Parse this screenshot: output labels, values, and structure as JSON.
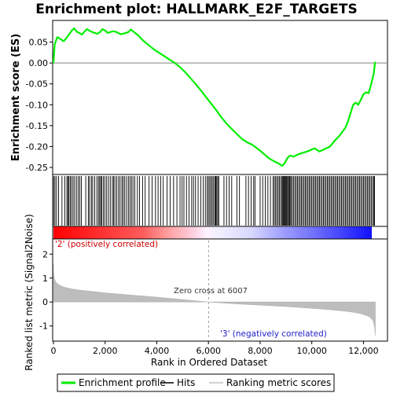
{
  "chart_data": [
    {
      "type": "line",
      "title": "Enrichment plot: HALLMARK_E2F_TARGETS",
      "ylabel": "Enrichment score (ES)",
      "ylim": [
        -0.265,
        0.1
      ],
      "yticks": [
        0.05,
        0.0,
        -0.05,
        -0.1,
        -0.15,
        -0.2,
        -0.25
      ],
      "ytick_labels": [
        "0.05",
        "0.00",
        "-0.05",
        "-0.10",
        "-0.15",
        "-0.20",
        "-0.25"
      ],
      "xlim": [
        0,
        12900
      ],
      "grid": false,
      "color": "#00ee00",
      "series": [
        {
          "name": "Enrichment profile",
          "x": [
            0,
            50,
            150,
            250,
            400,
            500,
            600,
            700,
            800,
            900,
            1000,
            1100,
            1200,
            1300,
            1400,
            1500,
            1600,
            1700,
            1800,
            1900,
            2000,
            2100,
            2200,
            2300,
            2400,
            2500,
            2600,
            2700,
            2800,
            2900,
            3000,
            3100,
            3200,
            3300,
            3400,
            3500,
            3700,
            3900,
            4100,
            4300,
            4500,
            4700,
            4900,
            5100,
            5300,
            5500,
            5700,
            5900,
            6100,
            6300,
            6500,
            6700,
            6900,
            7100,
            7300,
            7500,
            7700,
            7900,
            8100,
            8300,
            8500,
            8700,
            8850,
            8950,
            9050,
            9150,
            9300,
            9500,
            9700,
            9900,
            10100,
            10300,
            10500,
            10700,
            10900,
            11100,
            11300,
            11400,
            11500,
            11600,
            11700,
            11800,
            11900,
            12000,
            12100,
            12200,
            12300,
            12400,
            12450
          ],
          "y": [
            0.0,
            0.045,
            0.062,
            0.058,
            0.052,
            0.06,
            0.068,
            0.077,
            0.083,
            0.075,
            0.072,
            0.068,
            0.075,
            0.081,
            0.077,
            0.074,
            0.072,
            0.07,
            0.074,
            0.081,
            0.078,
            0.072,
            0.074,
            0.076,
            0.075,
            0.072,
            0.069,
            0.07,
            0.072,
            0.074,
            0.08,
            0.075,
            0.07,
            0.065,
            0.058,
            0.052,
            0.042,
            0.032,
            0.024,
            0.016,
            0.008,
            0.0,
            -0.01,
            -0.022,
            -0.036,
            -0.05,
            -0.065,
            -0.081,
            -0.097,
            -0.113,
            -0.13,
            -0.145,
            -0.158,
            -0.17,
            -0.182,
            -0.19,
            -0.196,
            -0.205,
            -0.215,
            -0.226,
            -0.234,
            -0.24,
            -0.246,
            -0.24,
            -0.228,
            -0.222,
            -0.224,
            -0.218,
            -0.214,
            -0.21,
            -0.204,
            -0.212,
            -0.206,
            -0.2,
            -0.185,
            -0.172,
            -0.155,
            -0.14,
            -0.12,
            -0.1,
            -0.095,
            -0.1,
            -0.088,
            -0.075,
            -0.07,
            -0.072,
            -0.05,
            -0.025,
            0.003
          ]
        }
      ]
    },
    {
      "type": "scatter",
      "legend_entry": "Hits",
      "hit_ranks": [
        10,
        60,
        120,
        200,
        330,
        440,
        520,
        560,
        600,
        650,
        700,
        760,
        820,
        890,
        960,
        1020,
        1080,
        1250,
        1350,
        1400,
        1470,
        1520,
        1600,
        1680,
        1740,
        1790,
        1830,
        1870,
        1930,
        1990,
        2060,
        2130,
        2200,
        2280,
        2330,
        2380,
        2450,
        2520,
        2580,
        2650,
        2700,
        2760,
        2830,
        2900,
        2960,
        3020,
        3080,
        3150,
        3250,
        3330,
        3450,
        3550,
        3700,
        3820,
        3950,
        4050,
        4150,
        4250,
        4400,
        4520,
        4650,
        4780,
        4900,
        4980,
        5050,
        5150,
        5250,
        5350,
        5420,
        5500,
        5600,
        5700,
        5800,
        5880,
        5950,
        6000,
        6050,
        6100,
        6150,
        6200,
        6250,
        6280,
        6320,
        6360,
        6400,
        6600,
        6700,
        6800,
        6900,
        7100,
        7200,
        7450,
        7550,
        7650,
        7750,
        7800,
        8000,
        8100,
        8200,
        8300,
        8400,
        8500,
        8550,
        8600,
        8650,
        8700,
        8750,
        8800,
        8850,
        8880,
        8910,
        8940,
        8970,
        9000,
        9030,
        9060,
        9100,
        9130,
        9160,
        9200,
        9250,
        9300,
        9350,
        9400,
        9450,
        9500,
        9550,
        9600,
        9650,
        9700,
        9750,
        9800,
        9850,
        9900,
        9950,
        10000,
        10050,
        10100,
        10150,
        10200,
        10250,
        10300,
        10350,
        10400,
        10450,
        10500,
        10550,
        10600,
        10650,
        10700,
        10750,
        10800,
        10850,
        10900,
        10950,
        11000,
        11050,
        11100,
        11150,
        11200,
        11250,
        11300,
        11350,
        11400,
        11450,
        11500,
        11550,
        11600,
        11650,
        11700,
        11750,
        11800,
        11850,
        11900,
        11950,
        12000,
        12050,
        12100,
        12150,
        12200,
        12250,
        12300,
        12350,
        12400,
        12430
      ]
    },
    {
      "type": "area",
      "legend_entry": "Ranking metric scores",
      "xlabel": "Rank in Ordered Dataset",
      "ylabel": "Ranked list metric (Signal2Noise)",
      "xlim": [
        0,
        12900
      ],
      "ylim": [
        -1.6,
        2.6
      ],
      "xticks": [
        0,
        2000,
        4000,
        6000,
        8000,
        10000,
        12000
      ],
      "xtick_labels": [
        "0",
        "2,000",
        "4,000",
        "6,000",
        "8,000",
        "10,000",
        "12,000"
      ],
      "yticks": [
        2,
        1,
        0,
        -1
      ],
      "ytick_labels": [
        "2",
        "1",
        "0",
        "-1"
      ],
      "x": [
        0,
        10,
        30,
        60,
        100,
        200,
        400,
        700,
        1000,
        1500,
        2000,
        3000,
        4000,
        5000,
        6007,
        7000,
        8000,
        9000,
        10000,
        10500,
        11000,
        11500,
        11800,
        12000,
        12200,
        12300,
        12380,
        12430,
        12460
      ],
      "y": [
        1.6,
        1.2,
        1.0,
        0.9,
        0.82,
        0.72,
        0.62,
        0.55,
        0.5,
        0.44,
        0.38,
        0.29,
        0.2,
        0.1,
        0.0,
        -0.07,
        -0.13,
        -0.19,
        -0.26,
        -0.3,
        -0.35,
        -0.41,
        -0.46,
        -0.52,
        -0.6,
        -0.68,
        -0.8,
        -1.05,
        -1.4
      ],
      "zero_cross_rank": 6007,
      "annotations": {
        "zero_cross": "Zero cross at 6007",
        "positive": "'2' (positively correlated)",
        "negative": "'3' (negatively correlated)"
      }
    }
  ],
  "legend": {
    "items": [
      "Enrichment profile",
      "Hits",
      "Ranking metric scores"
    ]
  }
}
